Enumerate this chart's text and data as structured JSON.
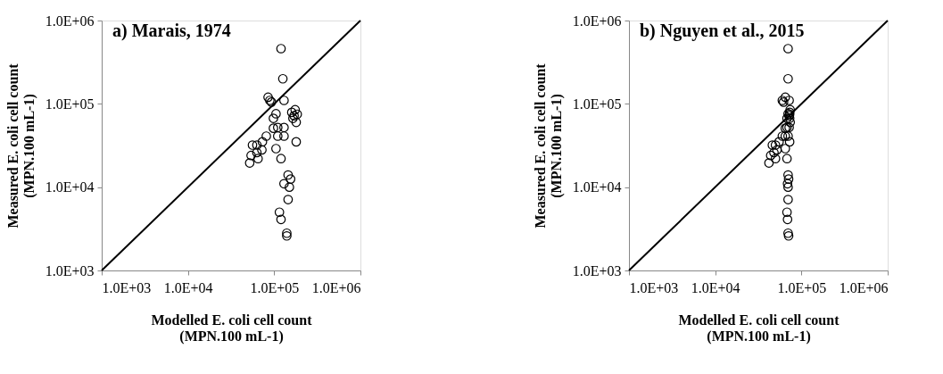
{
  "chart_data": [
    {
      "type": "scatter",
      "title": "a) Marais, 1974",
      "xlabel": "Modelled E. coli cell count\n(MPN.100 mL-1)",
      "ylabel": "Measured E. coli cell count\n(MPN.100 mL-1)",
      "log": "xy",
      "grid": false,
      "marker": "circle",
      "xlim": [
        1000,
        1000000
      ],
      "ylim": [
        1000,
        1000000
      ],
      "xticks": [
        {
          "value": 1000,
          "label": "1.0E+03"
        },
        {
          "value": 10000,
          "label": "1.0E+04"
        },
        {
          "value": 100000,
          "label": "1.0E+05"
        },
        {
          "value": 1000000,
          "label": "1.0E+06"
        }
      ],
      "yticks": [
        {
          "value": 1000,
          "label": "1.0E+03"
        },
        {
          "value": 10000,
          "label": "1.0E+04"
        },
        {
          "value": 100000,
          "label": "1.0E+05"
        },
        {
          "value": 1000000,
          "label": "1.0E+06"
        }
      ],
      "series": [
        {
          "type": "scatter",
          "color": "#000000",
          "x": [
            120000,
            126000,
            89000,
            85000,
            93000,
            130000,
            105000,
            98000,
            160000,
            165000,
            170000,
            180000,
            110000,
            98000,
            130000,
            130000,
            110000,
            81000,
            73000,
            63000,
            56000,
            72000,
            63000,
            54000,
            65000,
            52000,
            105000,
            120000,
            180000,
            145000,
            155000,
            130000,
            150000,
            145000,
            115000,
            120000,
            140000,
            140000,
            175000,
            185000
          ],
          "values": [
            460000,
            200000,
            110000,
            120000,
            105000,
            110000,
            76000,
            67000,
            79000,
            67000,
            72000,
            60000,
            52000,
            51000,
            52000,
            41000,
            41000,
            41000,
            35000,
            32000,
            32000,
            28000,
            26000,
            24000,
            22000,
            19500,
            29000,
            22000,
            35000,
            14000,
            12500,
            11000,
            10000,
            7100,
            5000,
            4100,
            2800,
            2600,
            85000,
            75000
          ]
        },
        {
          "type": "line",
          "color": "#000000",
          "marker": "none",
          "line_style": "solid",
          "x": [
            1000,
            1000000
          ],
          "values": [
            1000,
            1000000
          ]
        }
      ]
    },
    {
      "type": "scatter",
      "title": "b) Nguyen et al., 2015",
      "xlabel": "Modelled E. coli cell count\n(MPN.100 mL-1)",
      "ylabel": "Measured E. coli cell count\n(MPN.100 mL-1)",
      "log": "xy",
      "grid": false,
      "marker": "circle",
      "xlim": [
        1000,
        1000000
      ],
      "ylim": [
        1000,
        1000000
      ],
      "xticks": [
        {
          "value": 1000,
          "label": "1.0E+03"
        },
        {
          "value": 10000,
          "label": "1.0E+04"
        },
        {
          "value": 100000,
          "label": "1.0E+05"
        },
        {
          "value": 1000000,
          "label": "1.0E+06"
        }
      ],
      "yticks": [
        {
          "value": 1000,
          "label": "1.0E+03"
        },
        {
          "value": 10000,
          "label": "1.0E+04"
        },
        {
          "value": 100000,
          "label": "1.0E+05"
        },
        {
          "value": 1000000,
          "label": "1.0E+06"
        }
      ],
      "series": [
        {
          "type": "scatter",
          "color": "#000000",
          "x": [
            70000,
            70000,
            60000,
            65000,
            62000,
            72000,
            70000,
            68000,
            73000,
            73000,
            72000,
            74000,
            68000,
            65000,
            72000,
            70000,
            65000,
            60000,
            55000,
            50000,
            46000,
            52000,
            48000,
            44000,
            50000,
            42000,
            65000,
            68000,
            73000,
            70000,
            71000,
            69000,
            70000,
            70000,
            68000,
            69000,
            70000,
            71000,
            74000,
            73000
          ],
          "values": [
            460000,
            200000,
            110000,
            120000,
            105000,
            110000,
            76000,
            67000,
            79000,
            67000,
            72000,
            60000,
            52000,
            51000,
            52000,
            41000,
            41000,
            41000,
            35000,
            32000,
            32000,
            28000,
            26000,
            24000,
            22000,
            19500,
            29000,
            22000,
            35000,
            14000,
            12500,
            11000,
            10000,
            7100,
            5000,
            4100,
            2800,
            2600,
            85000,
            75000
          ]
        },
        {
          "type": "line",
          "color": "#000000",
          "marker": "none",
          "line_style": "solid",
          "x": [
            1000,
            1000000
          ],
          "values": [
            1000,
            1000000
          ]
        }
      ]
    }
  ]
}
